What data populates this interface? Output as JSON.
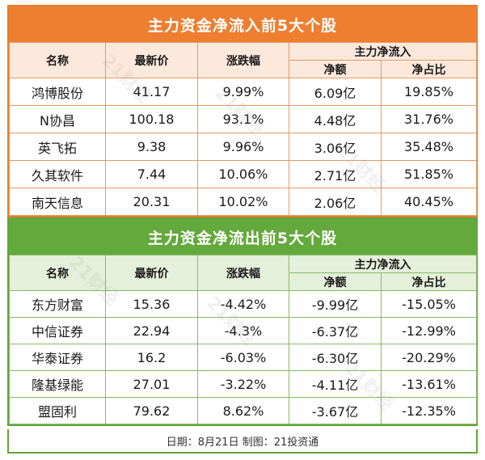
{
  "inflow": {
    "title": "主力资金净流入前5大个股",
    "headers": {
      "name": "名称",
      "price": "最新价",
      "change": "涨跌幅",
      "group": "主力净流入",
      "net": "净额",
      "ratio": "净占比"
    },
    "rows": [
      {
        "name": "鸿博股份",
        "price": "41.17",
        "change": "9.99%",
        "net": "6.09亿",
        "ratio": "19.85%"
      },
      {
        "name": "N协昌",
        "price": "100.18",
        "change": "93.1%",
        "net": "4.48亿",
        "ratio": "31.76%"
      },
      {
        "name": "英飞拓",
        "price": "9.38",
        "change": "9.96%",
        "net": "3.06亿",
        "ratio": "35.48%"
      },
      {
        "name": "久其软件",
        "price": "7.44",
        "change": "10.06%",
        "net": "2.71亿",
        "ratio": "51.85%"
      },
      {
        "name": "南天信息",
        "price": "20.31",
        "change": "10.02%",
        "net": "2.06亿",
        "ratio": "40.45%"
      }
    ]
  },
  "outflow": {
    "title": "主力资金净流出前5大个股",
    "headers": {
      "name": "名称",
      "price": "最新价",
      "change": "涨跌幅",
      "group": "主力净流入",
      "net": "净额",
      "ratio": "净占比"
    },
    "rows": [
      {
        "name": "东方财富",
        "price": "15.36",
        "change": "-4.42%",
        "net": "-9.99亿",
        "ratio": "-15.05%"
      },
      {
        "name": "中信证券",
        "price": "22.94",
        "change": "-4.3%",
        "net": "-6.37亿",
        "ratio": "-12.99%"
      },
      {
        "name": "华泰证券",
        "price": "16.2",
        "change": "-6.03%",
        "net": "-6.30亿",
        "ratio": "-20.29%"
      },
      {
        "name": "隆基绿能",
        "price": "27.01",
        "change": "-3.22%",
        "net": "-4.11亿",
        "ratio": "-13.61%"
      },
      {
        "name": "盟固利",
        "price": "79.62",
        "change": "8.62%",
        "net": "-3.67亿",
        "ratio": "-12.35%"
      }
    ]
  },
  "footer": "日期：8月21日 制图：21投资通",
  "watermark": "21财经"
}
